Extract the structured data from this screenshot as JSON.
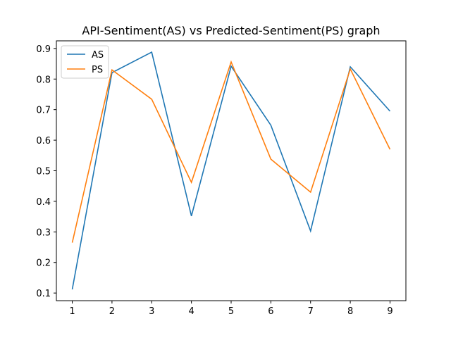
{
  "chart_data": {
    "type": "line",
    "title": "API-Sentiment(AS) vs Predicted-Sentiment(PS) graph",
    "xlabel": "",
    "ylabel": "",
    "x": [
      1,
      2,
      3,
      4,
      5,
      6,
      7,
      8,
      9
    ],
    "xlim": [
      0.6,
      9.4
    ],
    "ylim": [
      0.075,
      0.925
    ],
    "xticks": [
      "1",
      "2",
      "3",
      "4",
      "5",
      "6",
      "7",
      "8",
      "9"
    ],
    "yticks": [
      "0.1",
      "0.2",
      "0.3",
      "0.4",
      "0.5",
      "0.6",
      "0.7",
      "0.8",
      "0.9"
    ],
    "grid": false,
    "legend_position": "upper-left",
    "series": [
      {
        "name": "AS",
        "color": "#1f77b4",
        "values": [
          0.112,
          0.821,
          0.888,
          0.352,
          0.842,
          0.649,
          0.303,
          0.84,
          0.695
        ]
      },
      {
        "name": "PS",
        "color": "#ff7f0e",
        "values": [
          0.265,
          0.83,
          0.734,
          0.462,
          0.856,
          0.538,
          0.43,
          0.833,
          0.57
        ]
      }
    ]
  }
}
